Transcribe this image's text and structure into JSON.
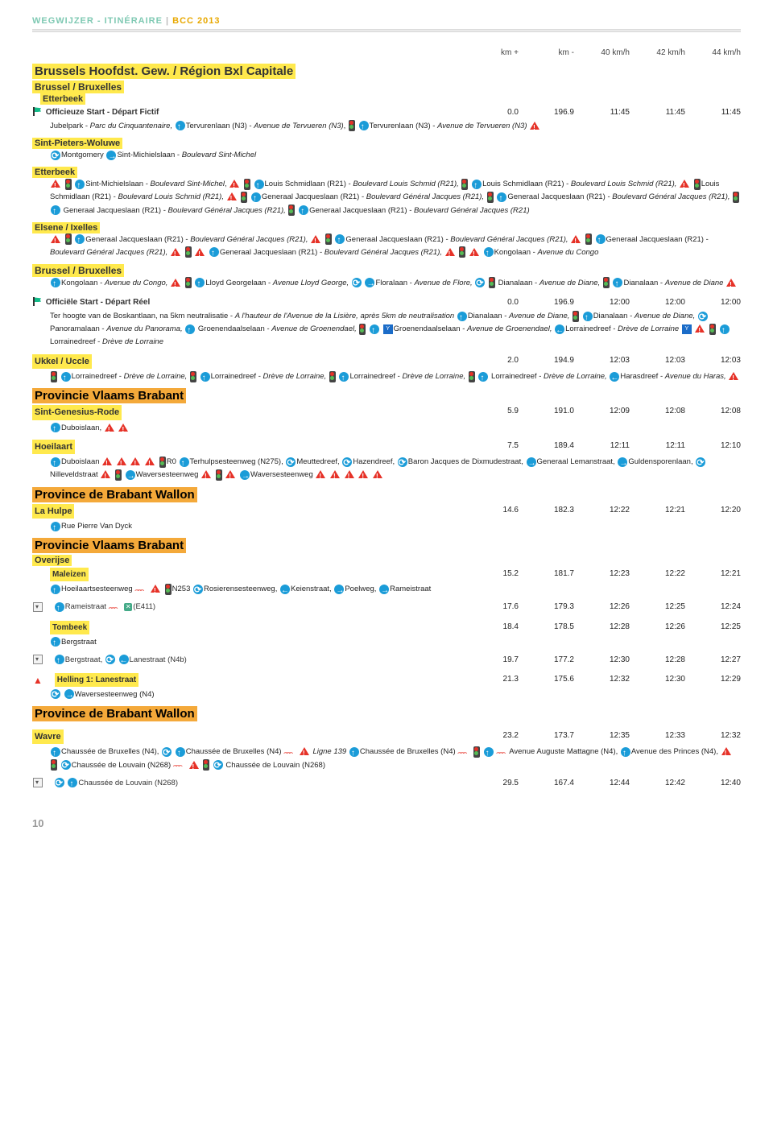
{
  "header": {
    "left": "WEGWIJZER - ITINÉRAIRE",
    "spacer": "|",
    "right": "BCC 2013"
  },
  "colheads": [
    "km +",
    "km -",
    "40 km/h",
    "42 km/h",
    "44 km/h"
  ],
  "region1_title": "Brussels Hoofdst. Gew. / Région Bxl Capitale",
  "brussel1": "Brussel / Bruxelles",
  "etterbeek": "Etterbeek",
  "officieuze": {
    "label": "Officieuze Start - Départ Fictif",
    "t": [
      "0.0",
      "196.9",
      "11:45",
      "11:45",
      "11:45"
    ]
  },
  "officieuze_body": "Jubelpark - |i|Parc du Cinquantenaire,|/i| [up]Tervurenlaan (N3) - |i|Avenue de Tervueren (N3)|/i|, [light] [up]Tervurenlaan (N3) - |i|Avenue de Tervueren (N3)|/i| [warn]",
  "spw": "Sint-Pieters-Woluwe",
  "spw_body": "[roundabout]Montgomery [right]Sint-Michielslaan - |i|Boulevard Sint-Michel|/i|",
  "etterbeek2_body": "[warn] [light] [up]Sint-Michielslaan - |i|Boulevard Sint-Michel|/i|, [warn] [light] [up]Louis Schmidlaan (R21) - |i|Boulevard Louis Schmid (R21),|/i| [light] [up]Louis Schmidlaan (R21) - |i|Boulevard Louis Schmid (R21),|/i| [warn] [light]Louis Schmidlaan (R21) - |i|Boulevard Louis Schmid (R21),|/i| [warn] [light] [up]Generaal Jacqueslaan (R21) - |i|Boulevard Général Jacques (R21),|/i| [light] [up]Generaal Jacqueslaan (R21) - |i|Boulevard Général Jacques (R21),|/i| [light] [up] Generaal Jacqueslaan (R21) - |i|Boulevard Général Jacques (R21),|/i| [light] [up]Generaal Jacqueslaan (R21) - |i|Boulevard Général Jacques (R21)|/i|",
  "elsene": "Elsene / Ixelles",
  "elsene_body": "[warn] [light] [up]Generaal Jacqueslaan (R21) - |i|Boulevard Général Jacques (R21),|/i| [warn] [light] [up]Generaal Jacqueslaan (R21) - |i|Boulevard Général Jacques (R21),|/i| [warn] [light] [up]Generaal Jacqueslaan (R21) - |i|Boulevard Général Jacques (R21),|/i| [warn] [light] [warn] [up]Generaal Jacqueslaan (R21) - |i|Boulevard Général Jacques (R21),|/i| [warn] [light] [warn] [up]Kongolaan - |i|Avenue du Congo|/i|",
  "brussel2": "Brussel / Bruxelles",
  "brussel2_body": "[up]Kongolaan - |i|Avenue du Congo,|/i| [warn] [light] [up]Lloyd Georgelaan - |i|Avenue Lloyd George,|/i| [roundabout] [right]Floralaan - |i|Avenue de Flore,|/i| [roundabout] [light] Dianalaan - |i|Avenue de Diane,|/i| [light] [up]Dianalaan - |i|Avenue de Diane|/i| [warn]",
  "officiele": {
    "label": "Officiële Start - Départ Réel",
    "t": [
      "0.0",
      "196.9",
      "12:00",
      "12:00",
      "12:00"
    ]
  },
  "officiele_body": "Ter hoogte van de Boskantlaan, na 5km neutralisatie - |i|A l'hauteur de l'Avenue de la Lisière, après 5km de neutralisation|/i| [up]Dianalaan - |i|Avenue de Diane,|/i| [light] [up]Dianalaan - |i|Avenue de Diane,|/i| [roundabout]Panoramalaan - |i|Avenue du Panorama,|/i| [up] Groenendaalselaan - |i|Avenue de Groenendael,|/i| [light] [up] [bridge]Groenendaalselaan - |i|Avenue de Groenendael,|/i|  [left]Lorrainedreef - |i|Drève de Lorraine|/i| [bridge] [warn] [light] [up]Lorrainedreef - |i|Drève de Lorraine|/i|",
  "ukkel": {
    "label": "Ukkel / Uccle",
    "t": [
      "2.0",
      "194.9",
      "12:03",
      "12:03",
      "12:03"
    ]
  },
  "ukkel_body": "[light] [up]Lorrainedreef - |i|Drève de Lorraine,|/i| [light] [up]Lorrainedreef - |i|Drève de Lorraine,|/i| [light] [up]Lorrainedreef - |i|Drève de Lorraine,|/i| [light] [up] Lorrainedreef - |i|Drève de Lorraine,|/i| [left]Harasdreef - |i|Avenue du Haras,|/i| [warn]",
  "pvb": "Provincie Vlaams Brabant",
  "sgr": {
    "label": "Sint-Genesius-Rode",
    "t": [
      "5.9",
      "191.0",
      "12:09",
      "12:08",
      "12:08"
    ]
  },
  "sgr_body": "[up]Duboislaan, [warn] [warn]",
  "hoeilaart": {
    "label": "Hoeilaart",
    "t": [
      "7.5",
      "189.4",
      "12:11",
      "12:11",
      "12:10"
    ]
  },
  "hoeilaart_body": "[up]Duboislaan [warn] [warn] [warn] [warn] [light]R0 [up]Terhulpsesteenweg (N275), [roundabout]Meuttedreef, [roundabout]Hazendreef, [roundabout]Baron Jacques de Dixmudestraat, [right]Generaal Lemanstraat, [right]Guldensporenlaan, [roundabout]Nilleveldstraat [warn] [light] [right]Waversesteenweg [warn] [light] [warn] [right]Waversesteenweg [warn] [warn] [warn] [warn] [warn]",
  "pbw": "Province de Brabant Wallon",
  "lahulpe": {
    "label": "La Hulpe",
    "t": [
      "14.6",
      "182.3",
      "12:22",
      "12:21",
      "12:20"
    ]
  },
  "lahulpe_body": "[up]Rue Pierre Van Dyck",
  "pvb2": "Provincie Vlaams Brabant",
  "overijse": "Overijse",
  "maleizen": {
    "label": "Maleizen",
    "t": [
      "15.2",
      "181.7",
      "12:23",
      "12:22",
      "12:21"
    ]
  },
  "maleizen_body": "[up]Hoeilaartsesteenweg [bump] [warn] [light]N253 [roundabout]Rosierensesteenweg, [left]Keienstraat, [right]Poelweg, [right]Rameistraat",
  "rameistraat": {
    "label": "[up]Rameistraat [bump] [cross](E411)",
    "t": [
      "17.6",
      "179.3",
      "12:26",
      "12:25",
      "12:24"
    ]
  },
  "tombeek": {
    "label": "Tombeek",
    "t": [
      "18.4",
      "178.5",
      "12:28",
      "12:26",
      "12:25"
    ]
  },
  "tombeek_body": "[up]Bergstraat",
  "bergstraat": {
    "label": "[up]Bergstraat, [roundabout] [left]Lanestraat (N4b)",
    "t": [
      "19.7",
      "177.2",
      "12:30",
      "12:28",
      "12:27"
    ]
  },
  "helling": {
    "label": "Helling 1: Lanestraat",
    "t": [
      "21.3",
      "175.6",
      "12:32",
      "12:30",
      "12:29"
    ]
  },
  "helling_body": "[roundabout] [right]Waversesteenweg (N4)",
  "pbw2": "Province de Brabant Wallon",
  "wavre": {
    "label": "Wavre",
    "t": [
      "23.2",
      "173.7",
      "12:35",
      "12:33",
      "12:32"
    ]
  },
  "wavre_body": "[up]Chaussée de Bruxelles (N4), [roundabout] [up]Chaussée de Bruxelles (N4) [bump] [warn] |i|Ligne 139|/i| [up]Chaussée de Bruxelles (N4) [bump] [light] [up] [bump]Avenue Auguste Mattagne (N4), [up]Avenue des Princes (N4), [warn] [light] [roundabout]Chaussée de Louvain (N268) [bump] [warn] [light] [roundabout] Chaussée de Louvain (N268)",
  "chaussee": {
    "label": "[roundabout] [up]Chaussée de Louvain (N268)",
    "t": [
      "29.5",
      "167.4",
      "12:44",
      "12:42",
      "12:40"
    ]
  },
  "pagenum": "10"
}
